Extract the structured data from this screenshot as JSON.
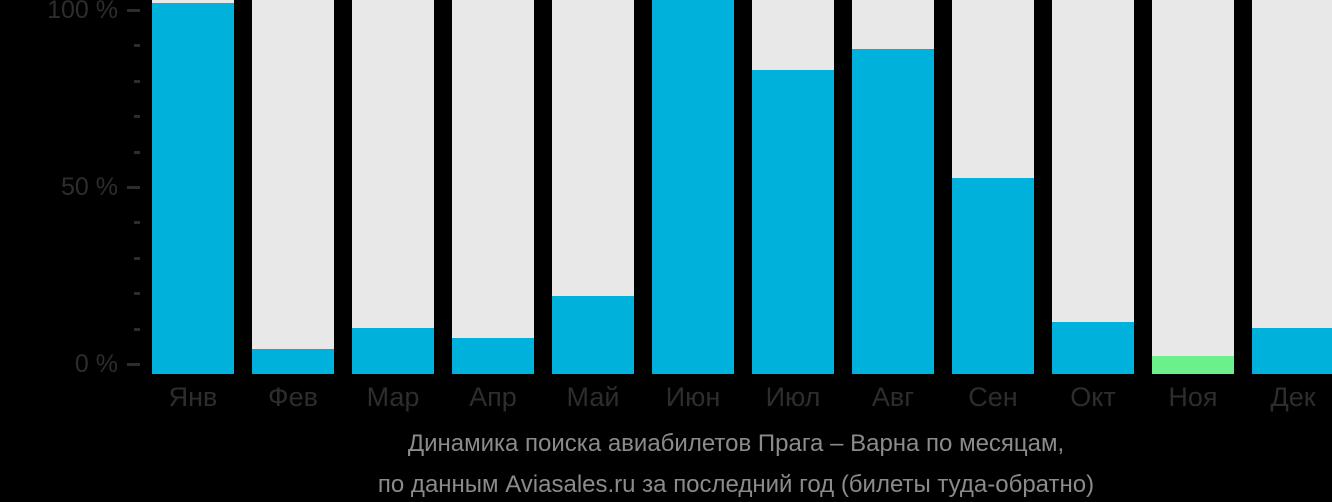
{
  "chart_data": {
    "type": "bar",
    "title": "Динамика поиска авиабилетов Прага – Варна по месяцам,",
    "subtitle": "по данным Aviasales.ru за последний год (билеты туда-обратно)",
    "categories": [
      "Янв",
      "Фев",
      "Мар",
      "Апр",
      "Май",
      "Июн",
      "Июл",
      "Авг",
      "Сен",
      "Окт",
      "Ноя",
      "Дек"
    ],
    "values": [
      102,
      4,
      10,
      7,
      19,
      103,
      83,
      89,
      52.5,
      11.5,
      2,
      10
    ],
    "unit": "%",
    "highlight": {
      "index": 10,
      "category": "Ноя"
    },
    "y_axis": {
      "tick_labels": [
        "0 %",
        "50 %",
        "100 %"
      ],
      "major_ticks": [
        0,
        50,
        100
      ],
      "minor_tick_step": 10,
      "ylim": [
        0,
        103
      ]
    },
    "legend": null,
    "grid": false,
    "colors": {
      "background": "#000000",
      "bar": "#00b1dc",
      "bar_highlight": "#6cf08c",
      "bar_track": "#e8e8e8",
      "axis_text": "#2d2d2d",
      "tick": "#2d2d2d",
      "caption_text": "#8b8b8b"
    }
  }
}
